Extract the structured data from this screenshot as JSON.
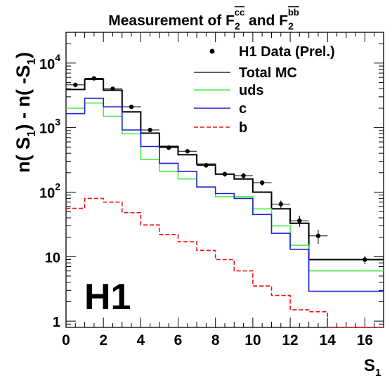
{
  "chart_data": {
    "type": "line",
    "title": {
      "prefix": "Measurement of F",
      "sub1": "2",
      "sup1": "cc",
      "middle": " and F",
      "sub2": "2",
      "sup2": "bb"
    },
    "xlabel": {
      "main": "S",
      "sub": "1"
    },
    "ylabel": {
      "p1": "n( S",
      "s1": "1",
      "p2": ") - n( -S",
      "s2": "1",
      "p3": ")"
    },
    "experiment_label": "H1",
    "xlim": [
      0,
      17
    ],
    "ylim": [
      0.8,
      30000
    ],
    "yscale": "log",
    "xticks": [
      0,
      2,
      4,
      6,
      8,
      10,
      12,
      14,
      16
    ],
    "xtick_labels": [
      "0",
      "2",
      "4",
      "6",
      "8",
      "10",
      "12",
      "14",
      "16"
    ],
    "yticks": [
      1,
      10,
      100,
      1000,
      10000
    ],
    "ytick_labels": [
      {
        "base": "1",
        "exp": ""
      },
      {
        "base": "10",
        "exp": ""
      },
      {
        "base": "10",
        "exp": "2"
      },
      {
        "base": "10",
        "exp": "3"
      },
      {
        "base": "10",
        "exp": "4"
      }
    ],
    "legend_position": "top-right",
    "legend": [
      {
        "label": "H1 Data (Prel.)",
        "style": "marker",
        "color": "#000000"
      },
      {
        "label": "Total MC",
        "style": "line",
        "color": "#000000"
      },
      {
        "label": "uds",
        "style": "line",
        "color": "#44ee44"
      },
      {
        "label": "c",
        "style": "line",
        "color": "#1f1fd8"
      },
      {
        "label": "b",
        "style": "dashed",
        "color": "#ee1111"
      }
    ],
    "data_points": {
      "x": [
        0.5,
        1.5,
        2.5,
        3.5,
        4.5,
        5.5,
        6.5,
        7.5,
        8.5,
        9.5,
        10.5,
        11.5,
        12.5,
        13.5,
        16.0
      ],
      "y": [
        4600,
        5800,
        4000,
        2100,
        920,
        490,
        430,
        260,
        190,
        180,
        140,
        65,
        36,
        21,
        9
      ],
      "xerr": [
        0.5,
        0.5,
        0.5,
        0.5,
        0.5,
        0.5,
        0.5,
        0.5,
        0.5,
        0.5,
        0.5,
        0.5,
        0.5,
        0.5,
        1.0
      ],
      "yerr_rel": [
        0.03,
        0.03,
        0.03,
        0.04,
        0.05,
        0.06,
        0.07,
        0.08,
        0.09,
        0.1,
        0.1,
        0.14,
        0.2,
        0.25,
        0.15
      ]
    },
    "bin_edges": [
      0,
      1,
      2,
      3,
      4,
      5,
      6,
      7,
      8,
      9,
      10,
      11,
      12,
      13,
      14,
      17
    ],
    "series": [
      {
        "name": "Total MC",
        "color": "#000000",
        "dash": false,
        "values": [
          3900,
          5600,
          3800,
          1750,
          820,
          510,
          380,
          270,
          190,
          160,
          100,
          55,
          33,
          9,
          9
        ]
      },
      {
        "name": "uds",
        "color": "#44ee44",
        "dash": false,
        "values": [
          2000,
          2400,
          1500,
          800,
          320,
          210,
          160,
          120,
          85,
          85,
          55,
          30,
          15,
          6,
          6
        ]
      },
      {
        "name": "c",
        "color": "#1f1fd8",
        "dash": false,
        "values": [
          1650,
          2850,
          2100,
          920,
          510,
          280,
          210,
          120,
          95,
          80,
          45,
          23,
          13,
          2.9,
          2.9
        ]
      },
      {
        "name": "b",
        "color": "#ee1111",
        "dash": true,
        "values": [
          56,
          80,
          70,
          48,
          31,
          22,
          17,
          12.5,
          9,
          6,
          3.5,
          2.5,
          1.5,
          1.4,
          0.78
        ]
      }
    ]
  }
}
